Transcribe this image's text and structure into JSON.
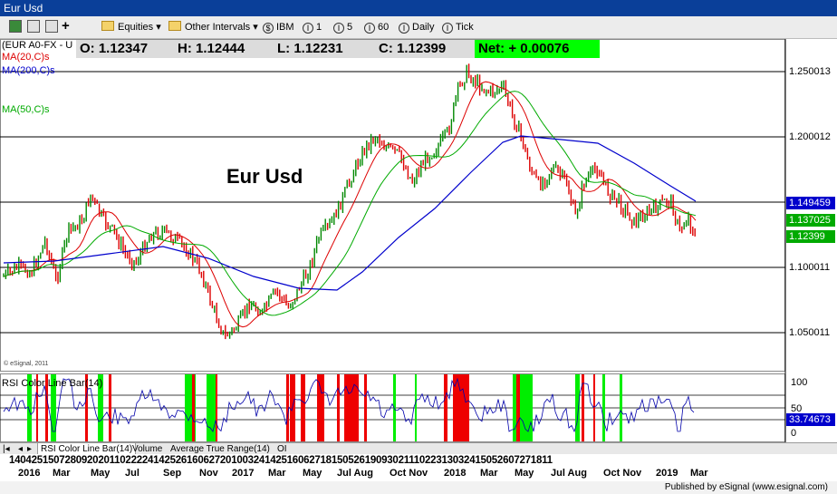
{
  "window": {
    "title": "Eur Usd"
  },
  "toolbar": {
    "equities": "Equities",
    "other_intervals": "Other Intervals",
    "symbol": "IBM",
    "intervals": [
      "1",
      "5",
      "60",
      "Daily",
      "Tick"
    ]
  },
  "chart": {
    "symbol_label": "(EUR A0-FX - U",
    "ma20": "MA(20,C)s",
    "ma200": "MA(200,C)s",
    "ma50": "MA(50,C)s",
    "watermark": "© eSignal, 2011",
    "big_title": "Eur Usd",
    "ohlc": {
      "open": "O:  1.12347",
      "high": "H:  1.12444",
      "low": "L:  1.12231",
      "close": "C:  1.12399"
    },
    "net": "Net:  + 0.00076",
    "price_axis": [
      "1.250013",
      "1.200012",
      "1.100011",
      "1.050011"
    ],
    "price_tags": [
      {
        "value": "1.149459",
        "color": "#0000cc"
      },
      {
        "value": "1.137025",
        "color": "#00aa00"
      },
      {
        "value": "1.12399",
        "color": "#00aa00"
      }
    ],
    "colors": {
      "up": "#008800",
      "down": "#dd0000",
      "ma20": "#dd0000",
      "ma50": "#00aa00",
      "ma200": "#0000cc",
      "net_bg": "#00ff00"
    }
  },
  "rsi": {
    "label": "RSI Color Line Bar(14)",
    "axis": [
      "100",
      "50",
      "0"
    ],
    "value_tag": "33.74673"
  },
  "tabs": [
    "RSI Color Line Bar(14)",
    "Volume",
    "Average True Range(14)",
    "OI"
  ],
  "dates": {
    "days": "14042515072809202011022224142526160627201003241425160627181505261909302111022313032415052607271811",
    "months": [
      "2016",
      "Mar",
      "May",
      "Jul",
      "Sep",
      "Nov",
      "2017",
      "Mar",
      "May",
      "Jul Aug",
      "Oct Nov",
      "2018",
      "Mar",
      "May",
      "Jul Aug",
      "Oct Nov",
      "2019",
      "Mar"
    ]
  },
  "footer": {
    "published": "Published by eSignal (www.esignal.com)"
  }
}
